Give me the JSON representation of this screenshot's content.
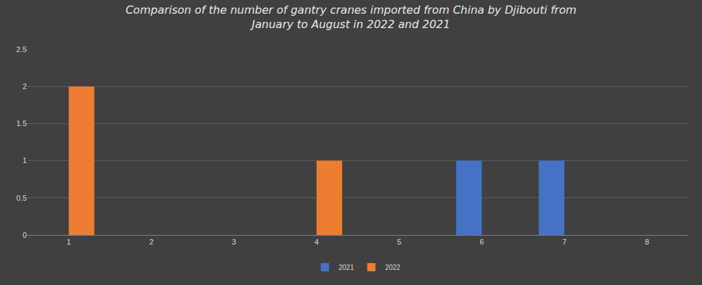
{
  "chart_data": {
    "type": "bar",
    "title": "Comparison of the number of gantry cranes imported from China by Djibouti from\nJanuary to August in 2022 and 2021",
    "categories": [
      "1",
      "2",
      "3",
      "4",
      "5",
      "6",
      "7",
      "8"
    ],
    "series": [
      {
        "name": "2021",
        "color": "#4472c4",
        "values": [
          0,
          0,
          0,
          0,
          0,
          1,
          1,
          0
        ]
      },
      {
        "name": "2022",
        "color": "#ed7d31",
        "values": [
          2,
          0,
          0,
          1,
          0,
          0,
          0,
          0
        ]
      }
    ],
    "ylim": [
      0,
      2.5
    ],
    "yticks": [
      0,
      0.5,
      1,
      1.5,
      2,
      2.5
    ],
    "grid": true,
    "legend": "bottom"
  }
}
